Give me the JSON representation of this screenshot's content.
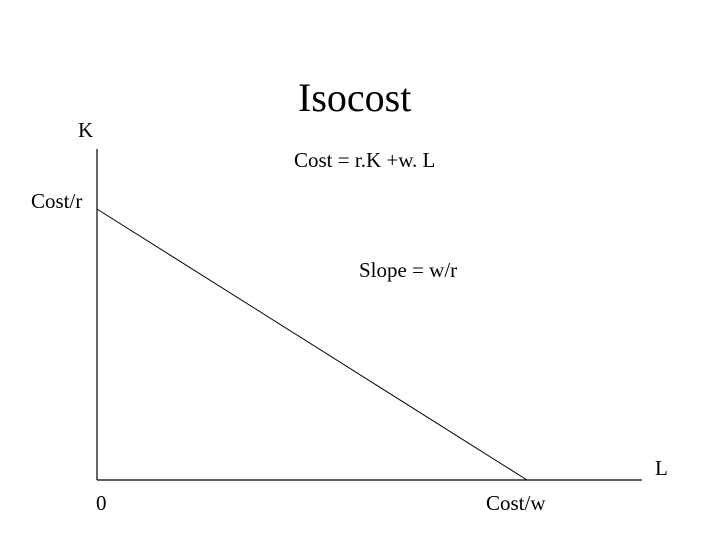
{
  "title": "Isocost",
  "equation": "Cost = r.K +w. L",
  "slope_label": "Slope = w/r",
  "axes": {
    "y_label": "K",
    "x_label": "L",
    "origin_label": "0",
    "y_intercept_label": "Cost/r",
    "x_intercept_label": "Cost/w"
  },
  "colors": {
    "background": "#ffffff",
    "ink": "#000000"
  }
}
